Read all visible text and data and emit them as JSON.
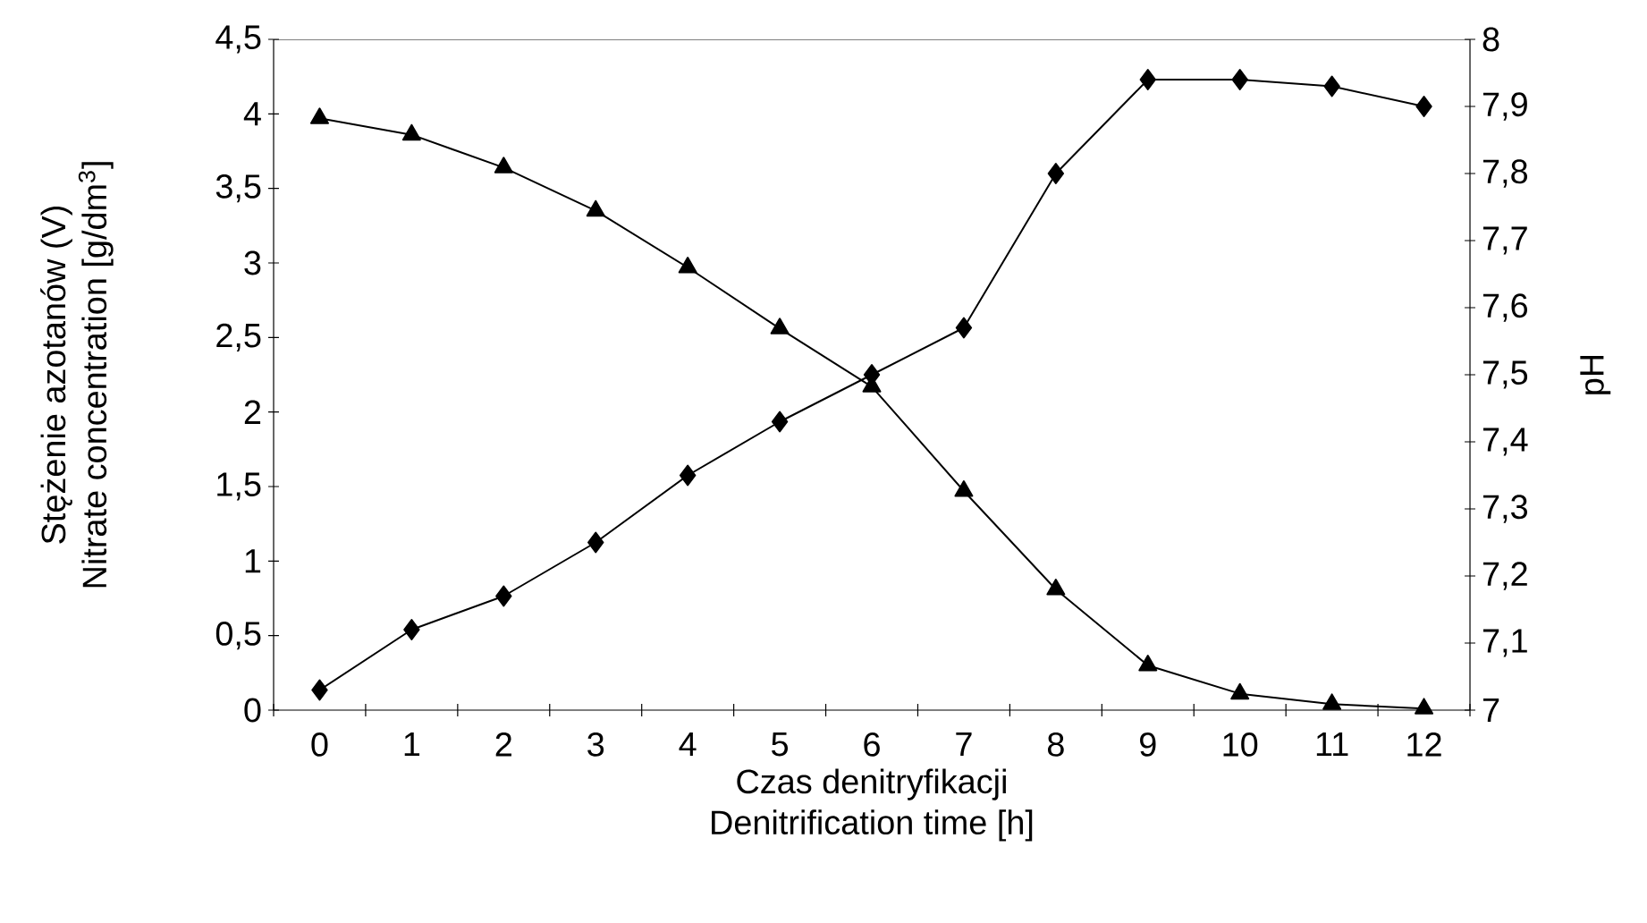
{
  "chart_data": {
    "type": "line",
    "xlabel": [
      "Czas denitryfikacji",
      "Denitrification time [h]"
    ],
    "ylabel": [
      "Stężenie azotanów (V)",
      "Nitrate concentration [g/dm$^{3}$]"
    ],
    "y2label": "pH",
    "categories": [
      "0",
      "1",
      "2",
      "3",
      "4",
      "5",
      "6",
      "7",
      "8",
      "9",
      "10",
      "11",
      "12"
    ],
    "series": [
      {
        "color": "#000000",
        "marker": "triangle",
        "values": [
          3.97,
          3.86,
          3.64,
          3.35,
          2.97,
          2.56,
          2.17,
          1.47,
          0.81,
          0.3,
          0.11,
          0.04,
          0.01
        ]
      },
      {
        "color": "#000000",
        "marker": "diamond",
        "axis": "y2",
        "values": [
          7.03,
          7.12,
          7.17,
          7.25,
          7.35,
          7.43,
          7.5,
          7.57,
          7.8,
          7.94,
          7.94,
          7.93,
          7.9
        ]
      }
    ],
    "ylim": [
      0,
      4.5
    ],
    "yticks": [
      0,
      {
        "value": 0.5,
        "label": "0,5"
      },
      1,
      {
        "value": 1.5,
        "label": "1,5"
      },
      2,
      {
        "value": 2.5,
        "label": "2,5"
      },
      3,
      {
        "value": 3.5,
        "label": "3,5"
      },
      4,
      {
        "value": 4.5,
        "label": "4,5"
      }
    ],
    "y2lim": [
      7,
      8
    ],
    "y2ticks": [
      7,
      {
        "value": 7.1,
        "label": "7,1"
      },
      {
        "value": 7.2,
        "label": "7,2"
      },
      {
        "value": 7.3,
        "label": "7,3"
      },
      {
        "value": 7.4,
        "label": "7,4"
      },
      {
        "value": 7.5,
        "label": "7,5"
      },
      {
        "value": 7.6,
        "label": "7,6"
      },
      {
        "value": 7.7,
        "label": "7,7"
      },
      {
        "value": 7.8,
        "label": "7,8"
      },
      {
        "value": 7.9,
        "label": "7,9"
      },
      8
    ],
    "line_style": "solid",
    "grid": false
  }
}
